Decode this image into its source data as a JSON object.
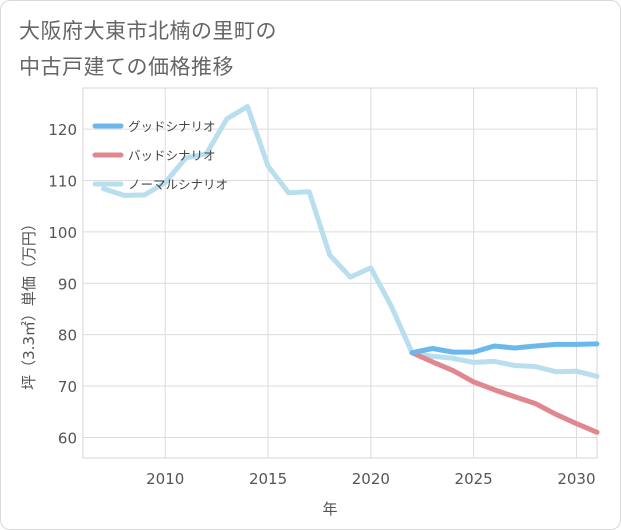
{
  "title_lines": [
    "大阪府大東市北楠の里町の",
    "中古戸建ての価格推移"
  ],
  "chart_data": {
    "type": "line",
    "xlabel": "年",
    "ylabel": "坪（3.3㎡）単価（万円）",
    "xlim": [
      2006,
      2031
    ],
    "ylim": [
      56,
      128
    ],
    "xticks": [
      2010,
      2015,
      2020,
      2025,
      2030
    ],
    "yticks": [
      60,
      70,
      80,
      90,
      100,
      110,
      120
    ],
    "grid": true,
    "legend_position": "top-left",
    "series": [
      {
        "name": "グッドシナリオ",
        "color": "#6bb8ec",
        "x": [
          2022,
          2023,
          2024,
          2025,
          2026,
          2027,
          2028,
          2029,
          2030,
          2031
        ],
        "y": [
          76.5,
          77.3,
          76.6,
          76.6,
          77.8,
          77.4,
          77.8,
          78.1,
          78.1,
          78.2
        ]
      },
      {
        "name": "バッドシナリオ",
        "color": "#e0878f",
        "x": [
          2022,
          2023,
          2024,
          2025,
          2026,
          2027,
          2028,
          2029,
          2030,
          2031
        ],
        "y": [
          76.5,
          74.7,
          73.0,
          70.8,
          69.3,
          67.9,
          66.6,
          64.5,
          62.7,
          61.0
        ]
      },
      {
        "name": "ノーマルシナリオ",
        "color": "#b9deee",
        "x": [
          2007,
          2008,
          2009,
          2010,
          2011,
          2012,
          2013,
          2014,
          2015,
          2016,
          2017,
          2018,
          2019,
          2020,
          2021,
          2022,
          2023,
          2024,
          2025,
          2026,
          2027,
          2028,
          2029,
          2030,
          2031
        ],
        "y": [
          108.4,
          107.1,
          107.2,
          109.6,
          114.4,
          115.2,
          122.0,
          124.4,
          112.8,
          107.6,
          107.8,
          95.5,
          91.2,
          93.0,
          85.5,
          76.5,
          75.8,
          75.4,
          74.6,
          74.8,
          74.0,
          73.8,
          72.8,
          72.9,
          71.9
        ]
      }
    ]
  }
}
